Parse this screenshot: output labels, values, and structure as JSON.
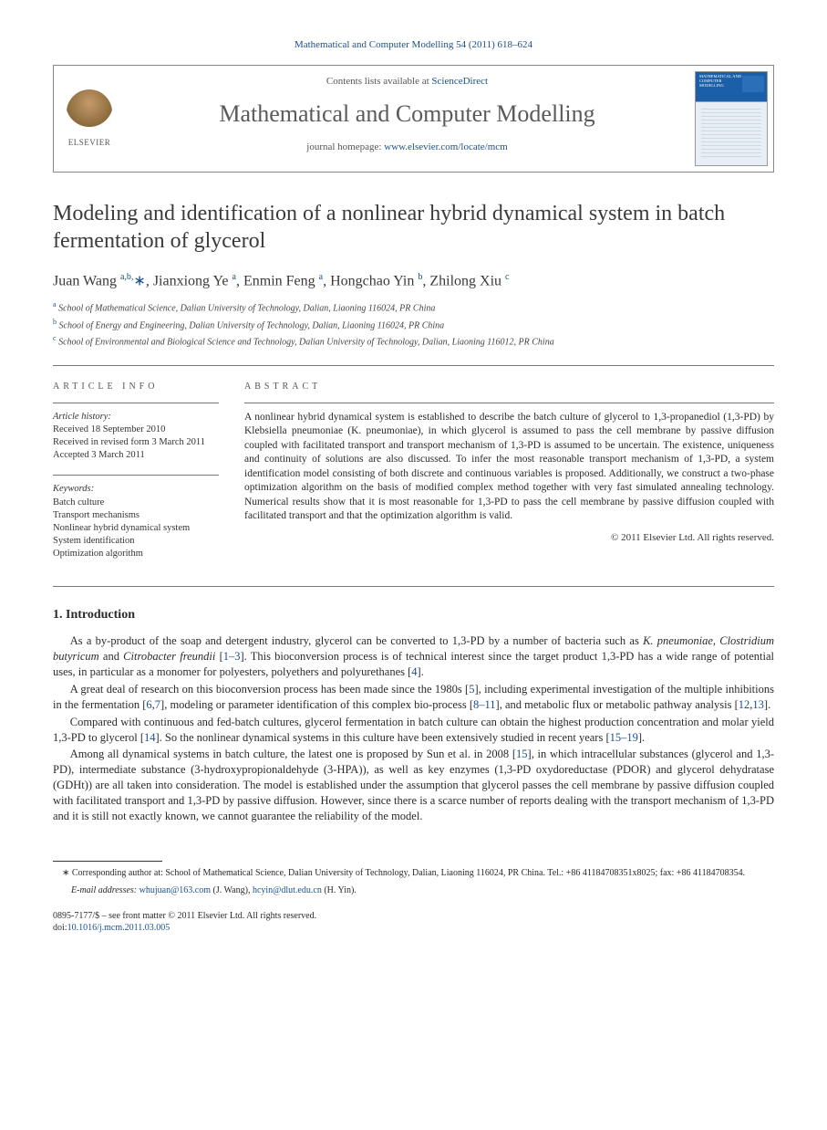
{
  "citation": "Mathematical and Computer Modelling 54 (2011) 618–624",
  "header": {
    "contents_prefix": "Contents lists available at ",
    "contents_link": "ScienceDirect",
    "journal_name": "Mathematical and Computer Modelling",
    "homepage_prefix": "journal homepage: ",
    "homepage_link": "www.elsevier.com/locate/mcm",
    "publisher_label": "ELSEVIER",
    "cover_title": "MATHEMATICAL AND COMPUTER MODELLING"
  },
  "title": "Modeling and identification of a nonlinear hybrid dynamical system in batch fermentation of glycerol",
  "authors_html": "Juan Wang <sup>a,b,</sup><span class='star'>∗</span>, Jianxiong Ye <sup>a</sup>, Enmin Feng <sup>a</sup>, Hongchao Yin <sup>b</sup>, Zhilong Xiu <sup>c</sup>",
  "affiliations": [
    {
      "sup": "a",
      "text": " School of Mathematical Science, Dalian University of Technology, Dalian, Liaoning 116024, PR China"
    },
    {
      "sup": "b",
      "text": " School of Energy and Engineering, Dalian University of Technology, Dalian, Liaoning 116024, PR China"
    },
    {
      "sup": "c",
      "text": " School of Environmental and Biological Science and Technology, Dalian University of Technology, Dalian, Liaoning 116012, PR China"
    }
  ],
  "info": {
    "heading": "ARTICLE INFO",
    "history_label": "Article history:",
    "history": [
      "Received 18 September 2010",
      "Received in revised form 3 March 2011",
      "Accepted 3 March 2011"
    ],
    "keywords_label": "Keywords:",
    "keywords": [
      "Batch culture",
      "Transport mechanisms",
      "Nonlinear hybrid dynamical system",
      "System identification",
      "Optimization algorithm"
    ]
  },
  "abstract": {
    "heading": "ABSTRACT",
    "text": "A nonlinear hybrid dynamical system is established to describe the batch culture of glycerol to 1,3-propanediol (1,3-PD) by Klebsiella pneumoniae (K. pneumoniae), in which glycerol is assumed to pass the cell membrane by passive diffusion coupled with facilitated transport and transport mechanism of 1,3-PD is assumed to be uncertain. The existence, uniqueness and continuity of solutions are also discussed. To infer the most reasonable transport mechanism of 1,3-PD, a system identification model consisting of both discrete and continuous variables is proposed. Additionally, we construct a two-phase optimization algorithm on the basis of modified complex method together with very fast simulated annealing technology. Numerical results show that it is most reasonable for 1,3-PD to pass the cell membrane by passive diffusion coupled with facilitated transport and that the optimization algorithm is valid.",
    "copyright": "© 2011 Elsevier Ltd. All rights reserved."
  },
  "intro": {
    "heading": "1. Introduction",
    "paragraphs": [
      "As a by-product of the soap and detergent industry, glycerol can be converted to 1,3-PD by a number of bacteria such as <span class='ital'>K. pneumoniae</span>, <span class='ital'>Clostridium butyricum</span> and <span class='ital'>Citrobacter freundii</span> [<span class='ref'>1–3</span>]. This bioconversion process is of technical interest since the target product 1,3-PD has a wide range of potential uses, in particular as a monomer for polyesters, polyethers and polyurethanes [<span class='ref'>4</span>].",
      "A great deal of research on this bioconversion process has been made since the 1980s [<span class='ref'>5</span>], including experimental investigation of the multiple inhibitions in the fermentation [<span class='ref'>6</span>,<span class='ref'>7</span>], modeling or parameter identification of this complex bio-process [<span class='ref'>8–11</span>], and metabolic flux or metabolic pathway analysis [<span class='ref'>12</span>,<span class='ref'>13</span>].",
      "Compared with continuous and fed-batch cultures, glycerol fermentation in batch culture can obtain the highest production concentration and molar yield 1,3-PD to glycerol [<span class='ref'>14</span>]. So the nonlinear dynamical systems in this culture have been extensively studied in recent years [<span class='ref'>15–19</span>].",
      "Among all dynamical systems in batch culture, the latest one is proposed by Sun et al. in 2008 [<span class='ref'>15</span>], in which intracellular substances (glycerol and 1,3-PD), intermediate substance (3-hydroxypropionaldehyde (3-HPA)), as well as key enzymes (1,3-PD oxydoreductase (PDOR) and glycerol dehydratase (GDHt)) are all taken into consideration. The model is established under the assumption that glycerol passes the cell membrane by passive diffusion coupled with facilitated transport and 1,3-PD by passive diffusion. However, since there is a scarce number of reports dealing with the transport mechanism of 1,3-PD and it is still not exactly known, we cannot guarantee the reliability of the model."
    ]
  },
  "footnote": {
    "corr": "∗ Corresponding author at: School of Mathematical Science, Dalian University of Technology, Dalian, Liaoning 116024, PR China. Tel.: +86 41184708351x8025; fax: +86 41184708354.",
    "email_label": "E-mail addresses: ",
    "email1": "whujuan@163.com",
    "email1_name": " (J. Wang), ",
    "email2": "hcyin@dlut.edu.cn",
    "email2_name": " (H. Yin)."
  },
  "bottom": {
    "line1": "0895-7177/$ – see front matter © 2011 Elsevier Ltd. All rights reserved.",
    "doi_label": "doi:",
    "doi": "10.1016/j.mcm.2011.03.005"
  },
  "colors": {
    "link": "#1a4f8f",
    "text": "#2a2a2a",
    "rule": "#777777"
  }
}
